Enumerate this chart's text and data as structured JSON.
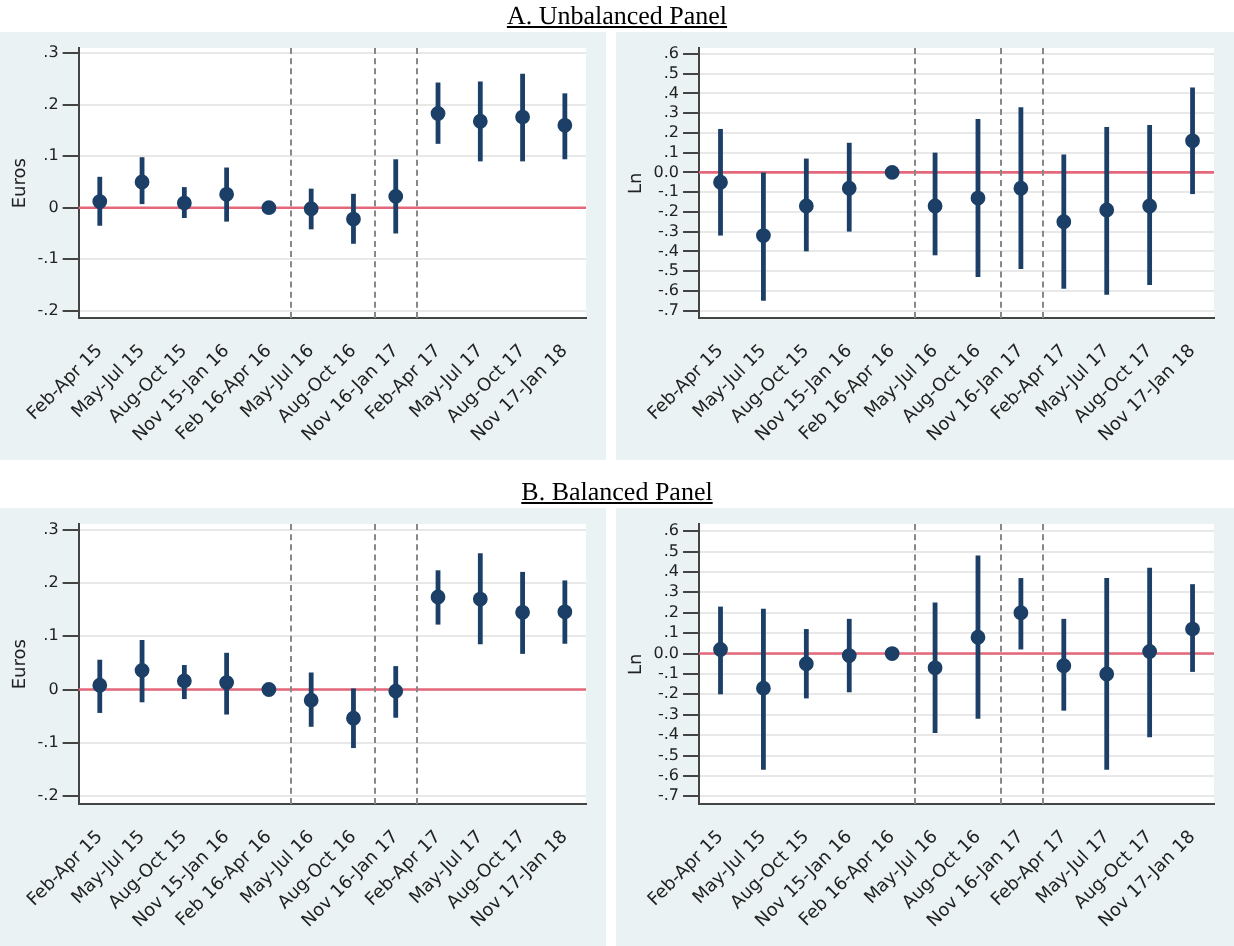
{
  "chart_data": [
    {
      "type": "scatter",
      "title": "A. Unbalanced Panel",
      "ylabel": "Euros",
      "categories": [
        "Feb-Apr 15",
        "May-Jul 15",
        "Aug-Oct 15",
        "Nov 15-Jan 16",
        "Feb 16-Apr 16",
        "May-Jul 16",
        "Aug-Oct 16",
        "Nov 16-Jan 17",
        "Feb-Apr 17",
        "May-Jul 17",
        "Aug-Oct 17",
        "Nov 17-Jan 18"
      ],
      "ylim": [
        -0.215,
        0.31
      ],
      "yticks": [
        {
          "value": -0.2,
          "label": "-.2"
        },
        {
          "value": -0.1,
          "label": "-.1"
        },
        0,
        {
          "value": 0.1,
          "label": ".1"
        },
        {
          "value": 0.2,
          "label": ".2"
        },
        {
          "value": 0.3,
          "label": ".3"
        }
      ],
      "series": [
        {
          "color": "#1b3f66",
          "values": [
            0.012,
            0.05,
            0.009,
            0.026,
            0,
            -0.002,
            -0.022,
            0.022,
            0.183,
            0.168,
            0.176,
            0.16
          ],
          "errors": [
            [
              -0.035,
              0.06
            ],
            [
              0.007,
              0.098
            ],
            [
              -0.02,
              0.04
            ],
            [
              -0.027,
              0.078
            ],
            null,
            [
              -0.042,
              0.037
            ],
            [
              -0.07,
              0.027
            ],
            [
              -0.05,
              0.094
            ],
            [
              0.124,
              0.243
            ],
            [
              0.09,
              0.245
            ],
            [
              0.09,
              0.26
            ],
            [
              0.094,
              0.222
            ]
          ]
        }
      ],
      "ref_lines": [
        {
          "axis": "y",
          "value": 0,
          "color": "#e4687a",
          "line_style": "solid"
        }
      ],
      "grid": "y",
      "legend": false,
      "marker": "circle"
    },
    {
      "type": "scatter",
      "ylabel": "Ln",
      "categories": [
        "Feb-Apr 15",
        "May-Jul 15",
        "Aug-Oct 15",
        "Nov 15-Jan 16",
        "Feb 16-Apr 16",
        "May-Jul 16",
        "Aug-Oct 16",
        "Nov 16-Jan 17",
        "Feb-Apr 17",
        "May-Jul 17",
        "Aug-Oct 17",
        "Nov 17-Jan 18"
      ],
      "ylim": [
        -0.74,
        0.63
      ],
      "yticks": [
        {
          "value": -0.7,
          "label": "-.7"
        },
        {
          "value": -0.6,
          "label": "-.6"
        },
        {
          "value": -0.5,
          "label": "-.5"
        },
        {
          "value": -0.4,
          "label": "-.4"
        },
        {
          "value": -0.3,
          "label": "-.3"
        },
        {
          "value": -0.2,
          "label": "-.2"
        },
        {
          "value": -0.1,
          "label": "-.1"
        },
        {
          "value": 0,
          "label": "0.0"
        },
        {
          "value": 0.1,
          "label": ".1"
        },
        {
          "value": 0.2,
          "label": ".2"
        },
        {
          "value": 0.3,
          "label": ".3"
        },
        {
          "value": 0.4,
          "label": ".4"
        },
        {
          "value": 0.5,
          "label": ".5"
        },
        {
          "value": 0.6,
          "label": ".6"
        }
      ],
      "series": [
        {
          "color": "#1b3f66",
          "values": [
            -0.05,
            -0.32,
            -0.17,
            -0.08,
            0,
            -0.17,
            -0.13,
            -0.08,
            -0.25,
            -0.19,
            -0.17,
            0.16
          ],
          "errors": [
            [
              -0.32,
              0.22
            ],
            [
              -0.65,
              0.0
            ],
            [
              -0.4,
              0.07
            ],
            [
              -0.3,
              0.15
            ],
            null,
            [
              -0.42,
              0.1
            ],
            [
              -0.53,
              0.27
            ],
            [
              -0.49,
              0.33
            ],
            [
              -0.59,
              0.09
            ],
            [
              -0.62,
              0.23
            ],
            [
              -0.57,
              0.24
            ],
            [
              -0.11,
              0.43
            ]
          ]
        }
      ],
      "ref_lines": [
        {
          "axis": "y",
          "value": 0,
          "color": "#e4687a",
          "line_style": "solid"
        }
      ],
      "grid": "y",
      "legend": false,
      "marker": "circle"
    },
    {
      "type": "scatter",
      "title": "B. Balanced Panel",
      "ylabel": "Euros",
      "categories": [
        "Feb-Apr 15",
        "May-Jul 15",
        "Aug-Oct 15",
        "Nov 15-Jan 16",
        "Feb 16-Apr 16",
        "May-Jul 16",
        "Aug-Oct 16",
        "Nov 16-Jan 17",
        "Feb-Apr 17",
        "May-Jul 17",
        "Aug-Oct 17",
        "Nov 17-Jan 18"
      ],
      "ylim": [
        -0.216,
        0.311
      ],
      "yticks": [
        {
          "value": -0.2,
          "label": "-.2"
        },
        {
          "value": -0.1,
          "label": "-.1"
        },
        0,
        {
          "value": 0.1,
          "label": ".1"
        },
        {
          "value": 0.2,
          "label": ".2"
        },
        {
          "value": 0.3,
          "label": ".3"
        }
      ],
      "series": [
        {
          "color": "#1b3f66",
          "values": [
            0.008,
            0.036,
            0.016,
            0.013,
            0,
            -0.02,
            -0.054,
            -0.003,
            0.174,
            0.17,
            0.145,
            0.146
          ],
          "errors": [
            [
              -0.044,
              0.056
            ],
            [
              -0.024,
              0.093
            ],
            [
              -0.018,
              0.046
            ],
            [
              -0.047,
              0.069
            ],
            null,
            [
              -0.07,
              0.032
            ],
            [
              -0.11,
              0.002
            ],
            [
              -0.053,
              0.044
            ],
            [
              0.122,
              0.224
            ],
            [
              0.085,
              0.256
            ],
            [
              0.067,
              0.221
            ],
            [
              0.086,
              0.205
            ]
          ]
        }
      ],
      "ref_lines": [
        {
          "axis": "y",
          "value": 0,
          "color": "#e4687a",
          "line_style": "solid"
        }
      ],
      "grid": "y",
      "legend": false,
      "marker": "circle"
    },
    {
      "type": "scatter",
      "ylabel": "Ln",
      "categories": [
        "Feb-Apr 15",
        "May-Jul 15",
        "Aug-Oct 15",
        "Nov 15-Jan 16",
        "Feb 16-Apr 16",
        "May-Jul 16",
        "Aug-Oct 16",
        "Nov 16-Jan 17",
        "Feb-Apr 17",
        "May-Jul 17",
        "Aug-Oct 17",
        "Nov 17-Jan 18"
      ],
      "ylim": [
        -0.74,
        0.635
      ],
      "yticks": [
        {
          "value": -0.7,
          "label": "-.7"
        },
        {
          "value": -0.6,
          "label": "-.6"
        },
        {
          "value": -0.5,
          "label": "-.5"
        },
        {
          "value": -0.4,
          "label": "-.4"
        },
        {
          "value": -0.3,
          "label": "-.3"
        },
        {
          "value": -0.2,
          "label": "-.2"
        },
        {
          "value": -0.1,
          "label": "-.1"
        },
        {
          "value": 0,
          "label": "0.0"
        },
        {
          "value": 0.1,
          "label": ".1"
        },
        {
          "value": 0.2,
          "label": ".2"
        },
        {
          "value": 0.3,
          "label": ".3"
        },
        {
          "value": 0.4,
          "label": ".4"
        },
        {
          "value": 0.5,
          "label": ".5"
        },
        {
          "value": 0.6,
          "label": ".6"
        }
      ],
      "series": [
        {
          "color": "#1b3f66",
          "values": [
            0.02,
            -0.17,
            -0.05,
            -0.01,
            0,
            -0.07,
            0.08,
            0.2,
            -0.06,
            -0.1,
            0.01,
            0.12
          ],
          "errors": [
            [
              -0.2,
              0.23
            ],
            [
              -0.57,
              0.22
            ],
            [
              -0.22,
              0.12
            ],
            [
              -0.19,
              0.17
            ],
            null,
            [
              -0.39,
              0.25
            ],
            [
              -0.32,
              0.48
            ],
            [
              0.02,
              0.37
            ],
            [
              -0.28,
              0.17
            ],
            [
              -0.57,
              0.37
            ],
            [
              -0.41,
              0.42
            ],
            [
              -0.09,
              0.34
            ]
          ]
        }
      ],
      "ref_lines": [
        {
          "axis": "y",
          "value": 0,
          "color": "#e4687a",
          "line_style": "solid"
        }
      ],
      "grid": "y",
      "legend": false,
      "marker": "circle"
    }
  ]
}
